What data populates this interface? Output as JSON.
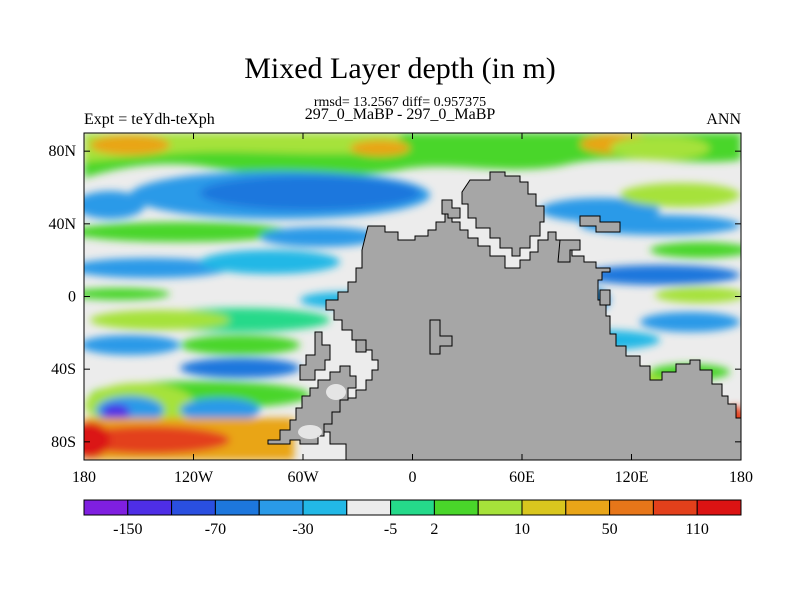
{
  "chart_data": {
    "type": "heatmap",
    "title": "Mixed Layer depth (in m)",
    "subtitle_stats": "rmsd= 13.2567 diff= 0.957375",
    "subtitle_runs": "297_0_MaBP - 297_0_MaBP",
    "left_string": "Expt = teYdh-teXph",
    "right_string": "ANN",
    "x_axis": {
      "range": [
        -180,
        180
      ],
      "ticks": [
        -180,
        -120,
        -60,
        0,
        60,
        120,
        180
      ],
      "tick_labels": [
        "180",
        "120W",
        "60W",
        "0",
        "60E",
        "120E",
        "180"
      ]
    },
    "y_axis": {
      "range": [
        -90,
        90
      ],
      "ticks": [
        80,
        40,
        0,
        -40,
        -80
      ],
      "tick_labels": [
        "80N",
        "40N",
        "0",
        "40S",
        "80S"
      ]
    },
    "colorbar": {
      "colors": [
        "#7f1fe0",
        "#4e2ee6",
        "#2a4fe0",
        "#1d77dd",
        "#2a9ae8",
        "#22b8e6",
        "#ececec",
        "#25d98a",
        "#49d62a",
        "#a6e23a",
        "#d9c61e",
        "#e9a518",
        "#e77619",
        "#e3401b",
        "#db1313"
      ],
      "labels": [
        "-150",
        "-70",
        "-30",
        "-5",
        "2",
        "10",
        "50",
        "110"
      ],
      "label_boundaries": [
        1,
        3,
        5,
        7,
        8,
        10,
        12,
        14
      ]
    },
    "land_color": "#a6a6a6"
  }
}
